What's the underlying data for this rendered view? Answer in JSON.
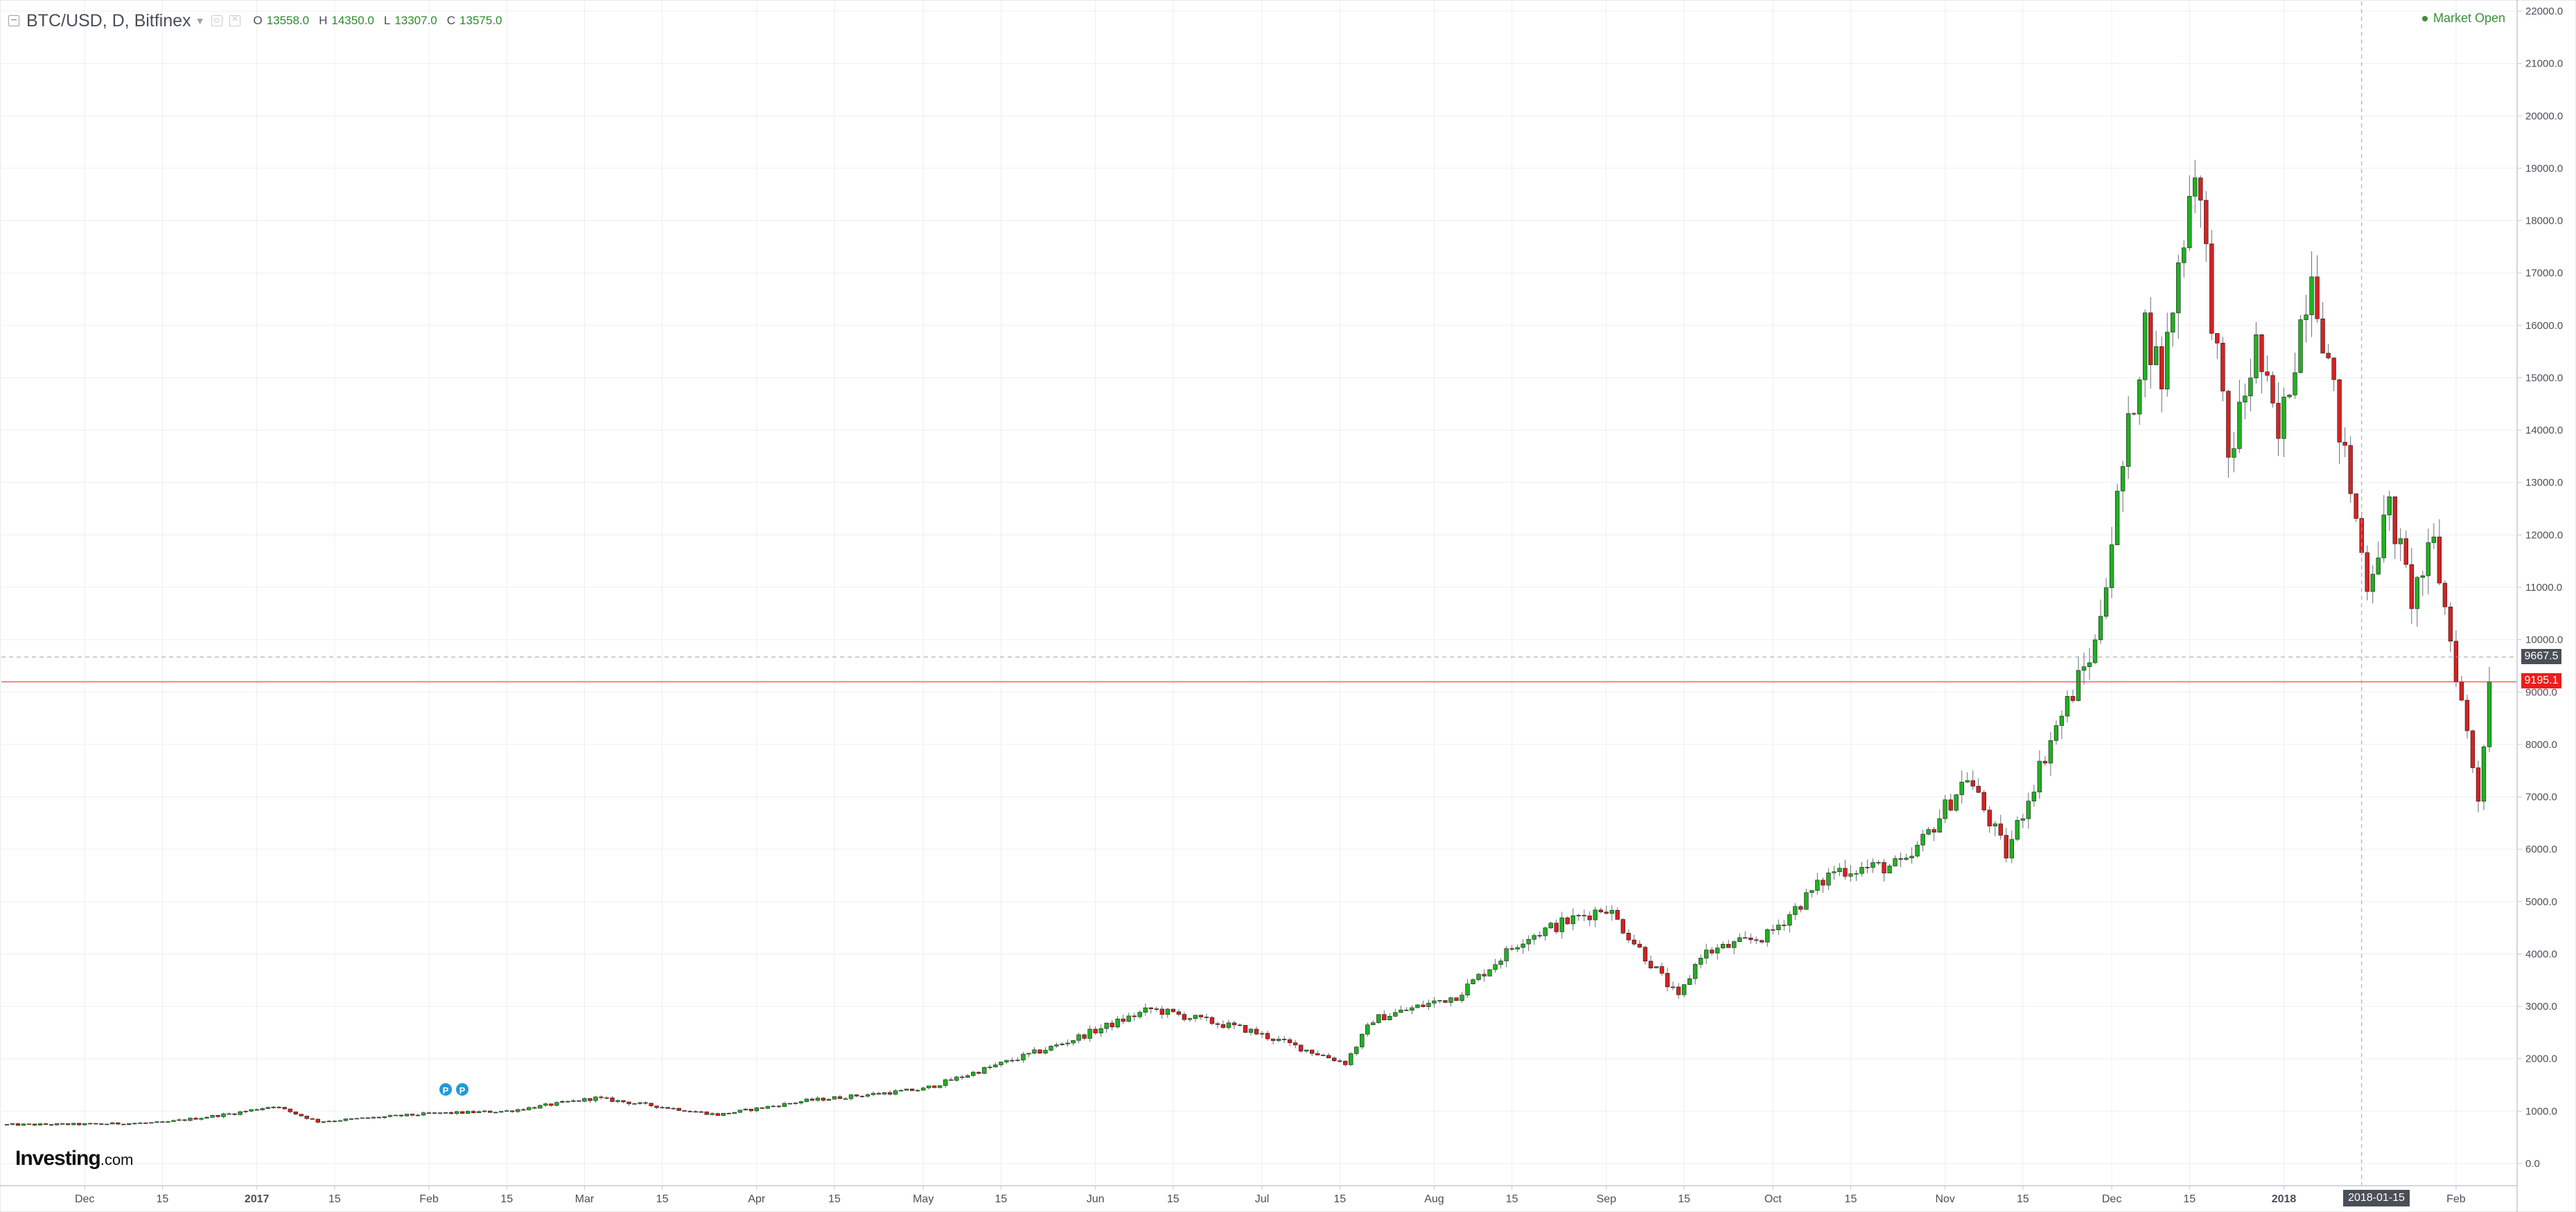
{
  "header": {
    "symbol": "BTC/USD, D, Bitfinex",
    "ohlc": {
      "o_label": "O",
      "o_value": "13558.0",
      "h_label": "H",
      "h_value": "14350.0",
      "l_label": "L",
      "l_value": "13307.0",
      "c_label": "C",
      "c_value": "13575.0"
    },
    "market_status": "Market Open"
  },
  "logo": {
    "main": "Investing",
    "suffix": ".com"
  },
  "price_tags": {
    "hover": "9667.5",
    "last": "9195.1"
  },
  "crosshair_date_tag": "2018-01-15",
  "event_markers": [
    "P",
    "P"
  ],
  "colors": {
    "up": "#22b022",
    "down": "#d62222",
    "last_price_line": "#ef1c1c",
    "crosshair": "#9aa0a8"
  },
  "chart_data": {
    "type": "candlestick",
    "title": "BTC/USD, D, Bitfinex",
    "interval": "D",
    "ylim": [
      0,
      22000
    ],
    "y_ticks": [
      "0.0",
      "1000.0",
      "2000.0",
      "3000.0",
      "4000.0",
      "5000.0",
      "6000.0",
      "7000.0",
      "8000.0",
      "9000.0",
      "10000.0",
      "11000.0",
      "12000.0",
      "13000.0",
      "14000.0",
      "15000.0",
      "16000.0",
      "17000.0",
      "18000.0",
      "19000.0",
      "20000.0",
      "21000.0",
      "22000.0"
    ],
    "x_ticks": [
      {
        "date": "2016-12-01",
        "label": "Dec"
      },
      {
        "date": "2016-12-15",
        "label": "15"
      },
      {
        "date": "2017-01-01",
        "label": "2017",
        "bold": true
      },
      {
        "date": "2017-01-15",
        "label": "15"
      },
      {
        "date": "2017-02-01",
        "label": "Feb"
      },
      {
        "date": "2017-02-15",
        "label": "15"
      },
      {
        "date": "2017-03-01",
        "label": "Mar"
      },
      {
        "date": "2017-03-15",
        "label": "15"
      },
      {
        "date": "2017-04-01",
        "label": "Apr"
      },
      {
        "date": "2017-04-15",
        "label": "15"
      },
      {
        "date": "2017-05-01",
        "label": "May"
      },
      {
        "date": "2017-05-15",
        "label": "15"
      },
      {
        "date": "2017-06-01",
        "label": "Jun"
      },
      {
        "date": "2017-06-15",
        "label": "15"
      },
      {
        "date": "2017-07-01",
        "label": "Jul"
      },
      {
        "date": "2017-07-15",
        "label": "15"
      },
      {
        "date": "2017-08-01",
        "label": "Aug"
      },
      {
        "date": "2017-08-15",
        "label": "15"
      },
      {
        "date": "2017-09-01",
        "label": "Sep"
      },
      {
        "date": "2017-09-15",
        "label": "15"
      },
      {
        "date": "2017-10-01",
        "label": "Oct"
      },
      {
        "date": "2017-10-15",
        "label": "15"
      },
      {
        "date": "2017-11-01",
        "label": "Nov"
      },
      {
        "date": "2017-11-15",
        "label": "15"
      },
      {
        "date": "2017-12-01",
        "label": "Dec"
      },
      {
        "date": "2017-12-15",
        "label": "15"
      },
      {
        "date": "2018-01-01",
        "label": "2018",
        "bold": true
      },
      {
        "date": "2018-02-01",
        "label": "Feb"
      }
    ],
    "last_price": 9195.1,
    "hover_price": 9667.5,
    "crosshair_date": "2018-01-15",
    "start_date": "2016-11-17",
    "end_date": "2018-02-07",
    "anchors": [
      [
        "2016-11-17",
        740
      ],
      [
        "2016-12-01",
        750
      ],
      [
        "2016-12-15",
        780
      ],
      [
        "2016-12-28",
        960
      ],
      [
        "2017-01-04",
        1100
      ],
      [
        "2017-01-12",
        800
      ],
      [
        "2017-02-01",
        950
      ],
      [
        "2017-02-15",
        1000
      ],
      [
        "2017-03-03",
        1250
      ],
      [
        "2017-03-17",
        1050
      ],
      [
        "2017-03-25",
        930
      ],
      [
        "2017-04-10",
        1200
      ],
      [
        "2017-05-01",
        1420
      ],
      [
        "2017-05-25",
        2250
      ],
      [
        "2017-06-11",
        2950
      ],
      [
        "2017-06-28",
        2560
      ],
      [
        "2017-07-16",
        1920
      ],
      [
        "2017-07-21",
        2750
      ],
      [
        "2017-08-05",
        3200
      ],
      [
        "2017-08-17",
        4300
      ],
      [
        "2017-09-01",
        4900
      ],
      [
        "2017-09-14",
        3150
      ],
      [
        "2017-09-18",
        4000
      ],
      [
        "2017-09-30",
        4350
      ],
      [
        "2017-10-12",
        5600
      ],
      [
        "2017-10-25",
        5700
      ],
      [
        "2017-11-05",
        7400
      ],
      [
        "2017-11-12",
        5900
      ],
      [
        "2017-11-20",
        8100
      ],
      [
        "2017-11-28",
        9900
      ],
      [
        "2017-12-07",
        16000
      ],
      [
        "2017-12-10",
        15000
      ],
      [
        "2017-12-16",
        19200
      ],
      [
        "2017-12-22",
        13400
      ],
      [
        "2017-12-27",
        15600
      ],
      [
        "2017-12-31",
        13800
      ],
      [
        "2018-01-06",
        17200
      ],
      [
        "2018-01-10",
        14600
      ],
      [
        "2018-01-16",
        11100
      ],
      [
        "2018-01-20",
        12500
      ],
      [
        "2018-01-24",
        10800
      ],
      [
        "2018-01-28",
        11800
      ],
      [
        "2018-02-05",
        7000
      ],
      [
        "2018-02-07",
        9195
      ]
    ]
  }
}
